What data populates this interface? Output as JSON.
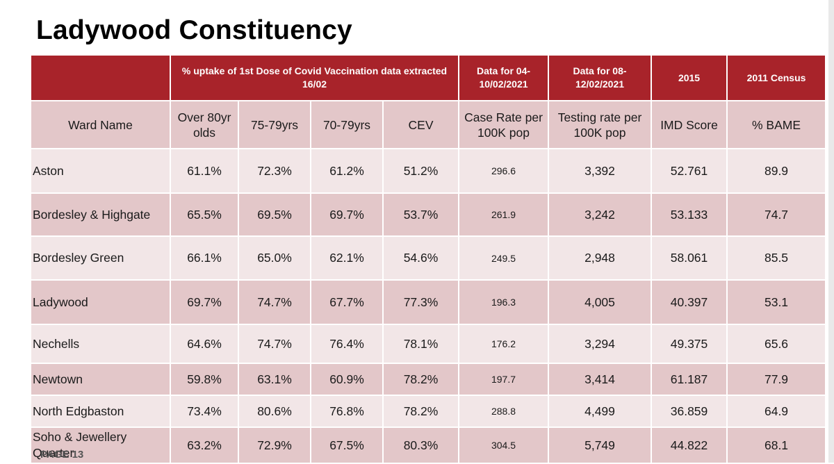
{
  "title": "Ladywood Constituency",
  "footer": "PAGE 13",
  "header_groups": {
    "vaccination": "% uptake of 1st Dose of Covid Vaccination data extracted 16/02",
    "case_data": "Data for 04-10/02/2021",
    "testing_data": "Data for 08-12/02/2021",
    "imd_year": "2015",
    "census": "2011 Census"
  },
  "columns": [
    "Ward Name",
    "Over 80yr olds",
    "75-79yrs",
    "70-79yrs",
    "CEV",
    "Case Rate per 100K pop",
    "Testing rate per 100K pop",
    "IMD Score",
    "% BAME"
  ],
  "rows": [
    [
      "Aston",
      "61.1%",
      "72.3%",
      "61.2%",
      "51.2%",
      "296.6",
      "3,392",
      "52.761",
      "89.9"
    ],
    [
      "Bordesley & Highgate",
      "65.5%",
      "69.5%",
      "69.7%",
      "53.7%",
      "261.9",
      "3,242",
      "53.133",
      "74.7"
    ],
    [
      "Bordesley Green",
      "66.1%",
      "65.0%",
      "62.1%",
      "54.6%",
      "249.5",
      "2,948",
      "58.061",
      "85.5"
    ],
    [
      "Ladywood",
      "69.7%",
      "74.7%",
      "67.7%",
      "77.3%",
      "196.3",
      "4,005",
      "40.397",
      "53.1"
    ],
    [
      "Nechells",
      "64.6%",
      "74.7%",
      "76.4%",
      "78.1%",
      "176.2",
      "3,294",
      "49.375",
      "65.6"
    ],
    [
      "Newtown",
      "59.8%",
      "63.1%",
      "60.9%",
      "78.2%",
      "197.7",
      "3,414",
      "61.187",
      "77.9"
    ],
    [
      "North Edgbaston",
      "73.4%",
      "80.6%",
      "76.8%",
      "78.2%",
      "288.8",
      "4,499",
      "36.859",
      "64.9"
    ],
    [
      "Soho & Jewellery Quarter",
      "63.2%",
      "72.9%",
      "67.5%",
      "80.3%",
      "304.5",
      "5,749",
      "44.822",
      "68.1"
    ]
  ],
  "colors": {
    "header_red": "#a8232a",
    "row_dark": "#e3c7c9",
    "row_light": "#f2e6e7"
  }
}
